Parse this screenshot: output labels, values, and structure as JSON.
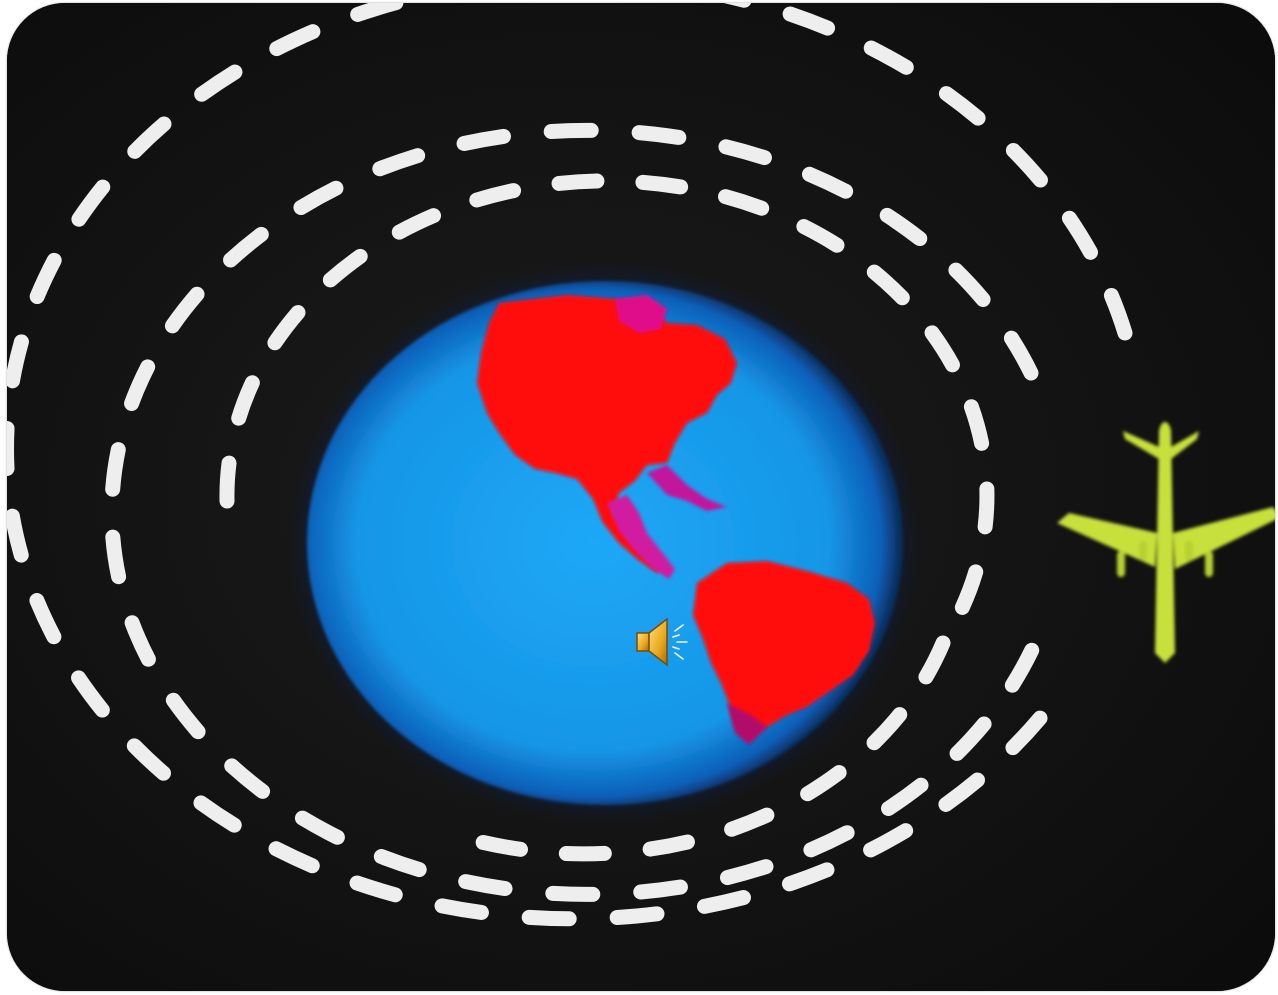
{
  "scene": {
    "background_color": "#111111",
    "ocean_color": "#1aa0ef",
    "land_color": "#ff0000",
    "orbit_color": "#f2f2f2",
    "airplane_color": "#c9e03a",
    "icons": {
      "sound": "speaker-icon",
      "airplane": "airplane-icon",
      "globe": "globe-icon"
    }
  }
}
